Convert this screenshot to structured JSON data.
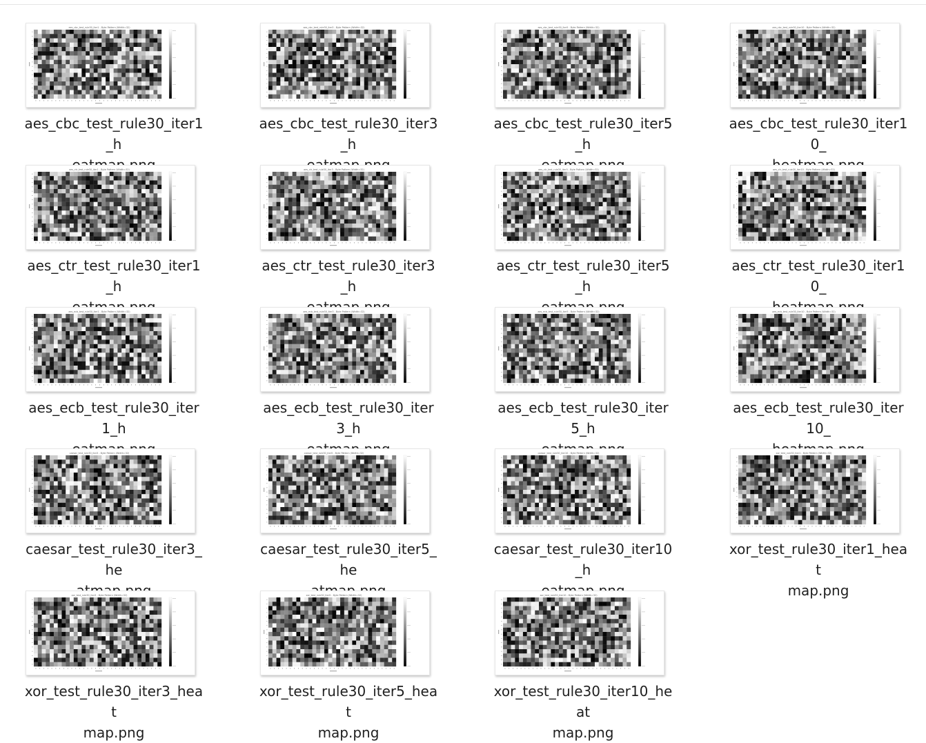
{
  "colors": {
    "background": "#ffffff",
    "caption_text": "#1f1f1f"
  },
  "files": [
    {
      "line1": "aes_cbc_test_rule30_iter1_h",
      "line2": "eatmap.png",
      "chart_title": "aes_cbc_test_rule30_iter1 - Byte Pattern (Width=32)"
    },
    {
      "line1": "aes_cbc_test_rule30_iter3_h",
      "line2": "eatmap.png",
      "chart_title": "aes_cbc_test_rule30_iter3 - Byte Pattern (Width=32)"
    },
    {
      "line1": "aes_cbc_test_rule30_iter5_h",
      "line2": "eatmap.png",
      "chart_title": "aes_cbc_test_rule30_iter5 - Byte Pattern (Width=32)"
    },
    {
      "line1": "aes_cbc_test_rule30_iter10_",
      "line2": "heatmap.png",
      "chart_title": "aes_cbc_test_rule30_iter10 - Byte Pattern (Width=32)"
    },
    {
      "line1": "aes_ctr_test_rule30_iter1_h",
      "line2": "eatmap.png",
      "chart_title": "aes_ctr_test_rule30_iter1 - Byte Pattern (Width=32)"
    },
    {
      "line1": "aes_ctr_test_rule30_iter3_h",
      "line2": "eatmap.png",
      "chart_title": "aes_ctr_test_rule30_iter3 - Byte Pattern (Width=32)"
    },
    {
      "line1": "aes_ctr_test_rule30_iter5_h",
      "line2": "eatmap.png",
      "chart_title": "aes_ctr_test_rule30_iter5 - Byte Pattern (Width=32)"
    },
    {
      "line1": "aes_ctr_test_rule30_iter10_",
      "line2": "heatmap.png",
      "chart_title": "aes_ctr_test_rule30_iter10 - Byte Pattern (Width=32)"
    },
    {
      "line1": "aes_ecb_test_rule30_iter1_h",
      "line2": "eatmap.png",
      "chart_title": "aes_ecb_test_rule30_iter1 - Byte Pattern (Width=32)"
    },
    {
      "line1": "aes_ecb_test_rule30_iter3_h",
      "line2": "eatmap.png",
      "chart_title": "aes_ecb_test_rule30_iter3 - Byte Pattern (Width=32)"
    },
    {
      "line1": "aes_ecb_test_rule30_iter5_h",
      "line2": "eatmap.png",
      "chart_title": "aes_ecb_test_rule30_iter5 - Byte Pattern (Width=32)"
    },
    {
      "line1": "aes_ecb_test_rule30_iter10_",
      "line2": "heatmap.png",
      "chart_title": "aes_ecb_test_rule30_iter10 - Byte Pattern (Width=32)"
    },
    {
      "line1": "caesar_test_rule30_iter3_he",
      "line2": "atmap.png",
      "chart_title": "caesar_test_rule30_iter3 - Byte Pattern (Width=32)"
    },
    {
      "line1": "caesar_test_rule30_iter5_he",
      "line2": "atmap.png",
      "chart_title": "caesar_test_rule30_iter5 - Byte Pattern (Width=32)"
    },
    {
      "line1": "caesar_test_rule30_iter10_h",
      "line2": "eatmap.png",
      "chart_title": "caesar_test_rule30_iter10 - Byte Pattern (Width=32)"
    },
    {
      "line1": "xor_test_rule30_iter1_heat",
      "line2": "map.png",
      "chart_title": "xor_test_rule30_iter1 - Byte Pattern (Width=32)"
    },
    {
      "line1": "xor_test_rule30_iter3_heat",
      "line2": "map.png",
      "chart_title": "xor_test_rule30_iter3 - Byte Pattern (Width=32)"
    },
    {
      "line1": "xor_test_rule30_iter5_heat",
      "line2": "map.png",
      "chart_title": "xor_test_rule30_iter5 - Byte Pattern (Width=32)"
    },
    {
      "line1": "xor_test_rule30_iter10_heat",
      "line2": "map.png",
      "chart_title": "xor_test_rule30_iter10 - Byte Pattern (Width=32)"
    }
  ]
}
